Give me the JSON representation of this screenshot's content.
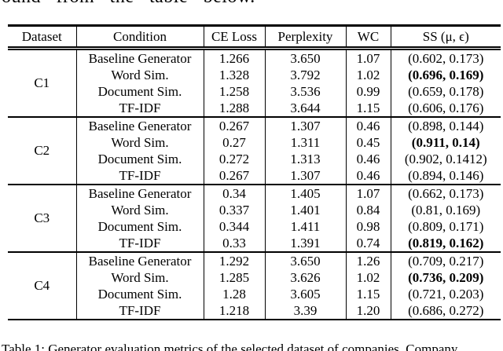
{
  "page": {
    "top_text_fragment": "ound from the table below.",
    "caption_fragment": "Table 1: Generator evaluation metrics of the selected dataset of companies. Company"
  },
  "colors": {
    "text": "#000000",
    "background": "#ffffff",
    "rule": "#000000"
  },
  "table": {
    "headers": [
      "Dataset",
      "Condition",
      "CE Loss",
      "Perplexity",
      "WC",
      "SS (μ, ϵ)"
    ],
    "groups": [
      {
        "dataset": "C1",
        "rows": [
          {
            "condition": "Baseline Generator",
            "ce_loss": "1.266",
            "perplexity": "3.650",
            "wc": "1.07",
            "ss": "(0.602, 0.173)",
            "ss_bold": false
          },
          {
            "condition": "Word Sim.",
            "ce_loss": "1.328",
            "perplexity": "3.792",
            "wc": "1.02",
            "ss": "(0.696, 0.169)",
            "ss_bold": true
          },
          {
            "condition": "Document Sim.",
            "ce_loss": "1.258",
            "perplexity": "3.536",
            "wc": "0.99",
            "ss": "(0.659, 0.178)",
            "ss_bold": false
          },
          {
            "condition": "TF-IDF",
            "ce_loss": "1.288",
            "perplexity": "3.644",
            "wc": "1.15",
            "ss": "(0.606, 0.176)",
            "ss_bold": false
          }
        ]
      },
      {
        "dataset": "C2",
        "rows": [
          {
            "condition": "Baseline Generator",
            "ce_loss": "0.267",
            "perplexity": "1.307",
            "wc": "0.46",
            "ss": "(0.898, 0.144)",
            "ss_bold": false
          },
          {
            "condition": "Word Sim.",
            "ce_loss": "0.27",
            "perplexity": "1.311",
            "wc": "0.45",
            "ss": "(0.911, 0.14)",
            "ss_bold": true
          },
          {
            "condition": "Document Sim.",
            "ce_loss": "0.272",
            "perplexity": "1.313",
            "wc": "0.46",
            "ss": "(0.902, 0.1412)",
            "ss_bold": false
          },
          {
            "condition": "TF-IDF",
            "ce_loss": "0.267",
            "perplexity": "1.307",
            "wc": "0.46",
            "ss": "(0.894, 0.146)",
            "ss_bold": false
          }
        ]
      },
      {
        "dataset": "C3",
        "rows": [
          {
            "condition": "Baseline Generator",
            "ce_loss": "0.34",
            "perplexity": "1.405",
            "wc": "1.07",
            "ss": "(0.662, 0.173)",
            "ss_bold": false
          },
          {
            "condition": "Word Sim.",
            "ce_loss": "0.337",
            "perplexity": "1.401",
            "wc": "0.84",
            "ss": "(0.81, 0.169)",
            "ss_bold": false
          },
          {
            "condition": "Document Sim.",
            "ce_loss": "0.344",
            "perplexity": "1.411",
            "wc": "0.98",
            "ss": "(0.809, 0.171)",
            "ss_bold": false
          },
          {
            "condition": "TF-IDF",
            "ce_loss": "0.33",
            "perplexity": "1.391",
            "wc": "0.74",
            "ss": "(0.819, 0.162)",
            "ss_bold": true
          }
        ]
      },
      {
        "dataset": "C4",
        "rows": [
          {
            "condition": "Baseline Generator",
            "ce_loss": "1.292",
            "perplexity": "3.650",
            "wc": "1.26",
            "ss": "(0.709, 0.217)",
            "ss_bold": false
          },
          {
            "condition": "Word Sim.",
            "ce_loss": "1.285",
            "perplexity": "3.626",
            "wc": "1.02",
            "ss": "(0.736, 0.209)",
            "ss_bold": true
          },
          {
            "condition": "Document Sim.",
            "ce_loss": "1.28",
            "perplexity": "3.605",
            "wc": "1.15",
            "ss": "(0.721, 0.203)",
            "ss_bold": false
          },
          {
            "condition": "TF-IDF",
            "ce_loss": "1.218",
            "perplexity": "3.39",
            "wc": "1.20",
            "ss": "(0.686, 0.272)",
            "ss_bold": false
          }
        ]
      }
    ]
  }
}
